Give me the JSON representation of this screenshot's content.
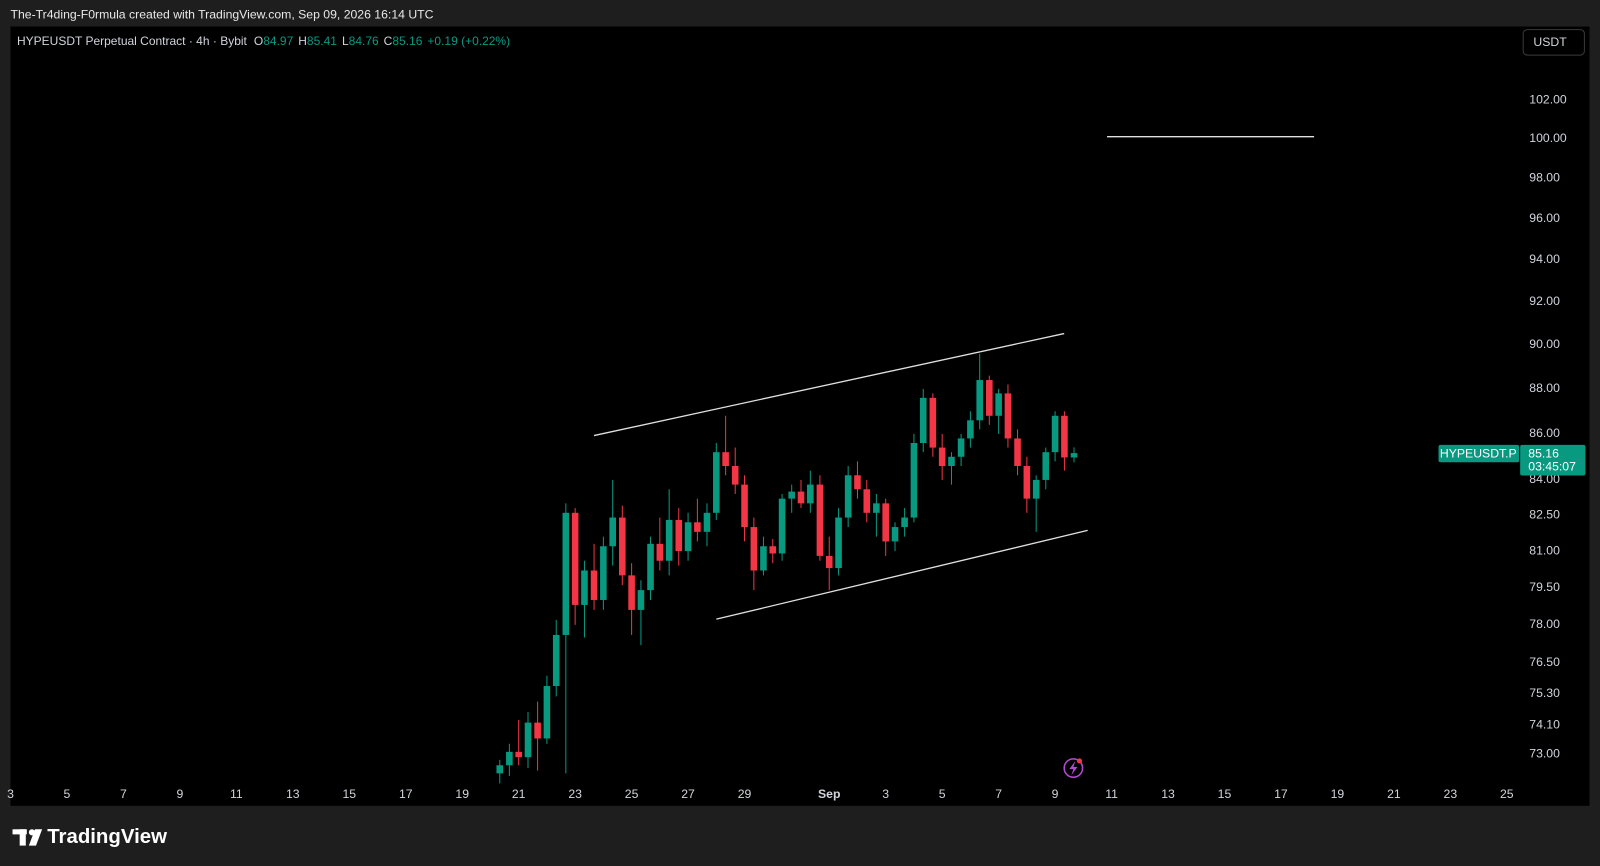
{
  "header": {
    "attribution": "The-Tr4ding-F0rmula created with TradingView.com, Sep 09, 2026 16:14 UTC"
  },
  "chart_data": {
    "type": "candlestick",
    "symbol": "HYPEUSDT Perpetual Contract · 4h · Bybit",
    "ohlc_labels": [
      "O",
      "H",
      "L",
      "C"
    ],
    "ohlc_values": [
      84.97,
      85.41,
      84.76,
      85.16
    ],
    "change": "+0.19 (+0.22%)",
    "currency": "USDT",
    "price_tag": {
      "symbol": "HYPEUSDT.P",
      "price": 85.16,
      "countdown": "03:45:07"
    },
    "up_color": "#089981",
    "down_color": "#f23645",
    "log_scale": true,
    "grid": false,
    "x": [
      20.33,
      20.67,
      21,
      21.33,
      21.67,
      22,
      22.33,
      22.67,
      23,
      23.33,
      23.67,
      24,
      24.33,
      24.67,
      25,
      25.33,
      25.67,
      26,
      26.33,
      26.67,
      27,
      27.33,
      27.67,
      28,
      28.33,
      28.67,
      29,
      29.33,
      29.67,
      30,
      30.33,
      30.67,
      31,
      31.33,
      31.67,
      32,
      32.33,
      32.67,
      33,
      33.33,
      33.67,
      34,
      34.33,
      34.67,
      35,
      35.33,
      35.67,
      36,
      36.33,
      36.67,
      37,
      37.33,
      37.67,
      38,
      38.33,
      38.67,
      39,
      39.33,
      39.67,
      40,
      40.33,
      40.67
    ],
    "open": [
      72.3,
      72.6,
      73.1,
      72.9,
      74.2,
      73.6,
      75.6,
      77.6,
      82.6,
      78.8,
      80.2,
      79.0,
      81.2,
      82.4,
      80.0,
      78.6,
      79.4,
      81.3,
      80.6,
      82.3,
      81.0,
      82.2,
      81.8,
      82.6,
      85.2,
      84.6,
      83.8,
      82.0,
      80.2,
      81.2,
      80.9,
      83.2,
      83.5,
      83.0,
      83.8,
      80.8,
      80.3,
      82.4,
      84.2,
      83.6,
      82.6,
      83.0,
      81.4,
      82.0,
      82.4,
      85.6,
      87.6,
      85.4,
      84.6,
      85.0,
      85.8,
      86.6,
      88.4,
      86.8,
      87.8,
      85.8,
      84.6,
      83.2,
      84.0,
      85.2,
      86.8,
      84.97
    ],
    "high": [
      72.8,
      73.4,
      74.3,
      74.6,
      75.0,
      76.0,
      78.2,
      83.0,
      82.8,
      80.6,
      81.3,
      81.6,
      84.0,
      82.9,
      80.5,
      79.8,
      81.6,
      82.4,
      83.6,
      82.8,
      82.6,
      83.2,
      83.0,
      85.6,
      86.8,
      85.4,
      84.2,
      82.4,
      81.6,
      81.5,
      83.4,
      83.8,
      84.0,
      84.4,
      84.2,
      81.6,
      82.8,
      84.6,
      84.8,
      84.0,
      83.4,
      83.2,
      82.2,
      82.8,
      86.0,
      88.0,
      87.8,
      86.0,
      85.2,
      86.0,
      87.0,
      89.6,
      88.6,
      88.0,
      88.2,
      86.2,
      85.0,
      84.2,
      85.4,
      87.0,
      87.0,
      85.41
    ],
    "low": [
      71.9,
      72.2,
      72.6,
      72.5,
      72.4,
      73.4,
      75.2,
      72.3,
      78.0,
      77.5,
      78.6,
      78.6,
      80.4,
      79.6,
      77.6,
      77.2,
      79.0,
      80.2,
      80.0,
      80.4,
      80.6,
      81.4,
      81.2,
      82.3,
      84.2,
      83.4,
      81.4,
      79.4,
      80.0,
      80.5,
      80.6,
      82.6,
      82.8,
      82.6,
      80.6,
      79.4,
      80.0,
      82.0,
      83.2,
      82.2,
      81.6,
      80.8,
      81.0,
      81.6,
      82.2,
      85.2,
      85.0,
      84.0,
      83.8,
      84.6,
      85.4,
      86.2,
      86.4,
      86.0,
      85.4,
      84.2,
      82.6,
      81.8,
      83.6,
      84.8,
      84.4,
      84.76
    ],
    "close": [
      72.6,
      73.1,
      72.9,
      74.2,
      73.6,
      75.6,
      77.6,
      82.6,
      78.8,
      80.2,
      79.0,
      81.2,
      82.4,
      80.0,
      78.6,
      79.4,
      81.3,
      80.6,
      82.3,
      81.0,
      82.2,
      81.8,
      82.6,
      85.2,
      84.6,
      83.8,
      82.0,
      80.2,
      81.2,
      80.9,
      83.2,
      83.5,
      83.0,
      83.8,
      80.8,
      80.3,
      82.4,
      84.2,
      83.6,
      82.6,
      83.0,
      81.4,
      82.0,
      82.4,
      85.6,
      87.6,
      85.4,
      84.6,
      85.0,
      85.8,
      86.6,
      88.4,
      86.8,
      87.8,
      85.8,
      84.6,
      83.2,
      84.0,
      85.2,
      86.8,
      84.97,
      85.16
    ],
    "xlim": [
      3,
      56.4
    ],
    "ylim": [
      71.93,
      105.8
    ],
    "xticks": [
      3,
      5,
      7,
      9,
      11,
      13,
      15,
      17,
      19,
      21,
      23,
      25,
      27,
      29,
      {
        "value": 32,
        "label": "Sep"
      },
      {
        "value": 34,
        "label": "3"
      },
      {
        "value": 36,
        "label": "5"
      },
      {
        "value": 38,
        "label": "7"
      },
      {
        "value": 40,
        "label": "9"
      },
      {
        "value": 42,
        "label": "11"
      },
      {
        "value": 44,
        "label": "13"
      },
      {
        "value": 46,
        "label": "15"
      },
      {
        "value": 48,
        "label": "17"
      },
      {
        "value": 50,
        "label": "19"
      },
      {
        "value": 52,
        "label": "21"
      },
      {
        "value": 54,
        "label": "23"
      },
      {
        "value": 56,
        "label": "25"
      }
    ],
    "yticks": [
      {
        "value": 73,
        "label": "73.00"
      },
      {
        "value": 74.1,
        "label": "74.10"
      },
      {
        "value": 75.3,
        "label": "75.30"
      },
      {
        "value": 76.5,
        "label": "76.50"
      },
      {
        "value": 78,
        "label": "78.00"
      },
      {
        "value": 79.5,
        "label": "79.50"
      },
      {
        "value": 81,
        "label": "81.00"
      },
      {
        "value": 82.5,
        "label": "82.50"
      },
      {
        "value": 84,
        "label": "84.00"
      },
      {
        "value": 86,
        "label": "86.00"
      },
      {
        "value": 88,
        "label": "88.00"
      },
      {
        "value": 90,
        "label": "90.00"
      },
      {
        "value": 92,
        "label": "92.00"
      },
      {
        "value": 94,
        "label": "94.00"
      },
      {
        "value": 96,
        "label": "96.00"
      },
      {
        "value": 98,
        "label": "98.00"
      },
      {
        "value": 100,
        "label": "100.00"
      },
      {
        "value": 102,
        "label": "102.00"
      }
    ]
  },
  "footer": {
    "brand": "TradingView"
  }
}
